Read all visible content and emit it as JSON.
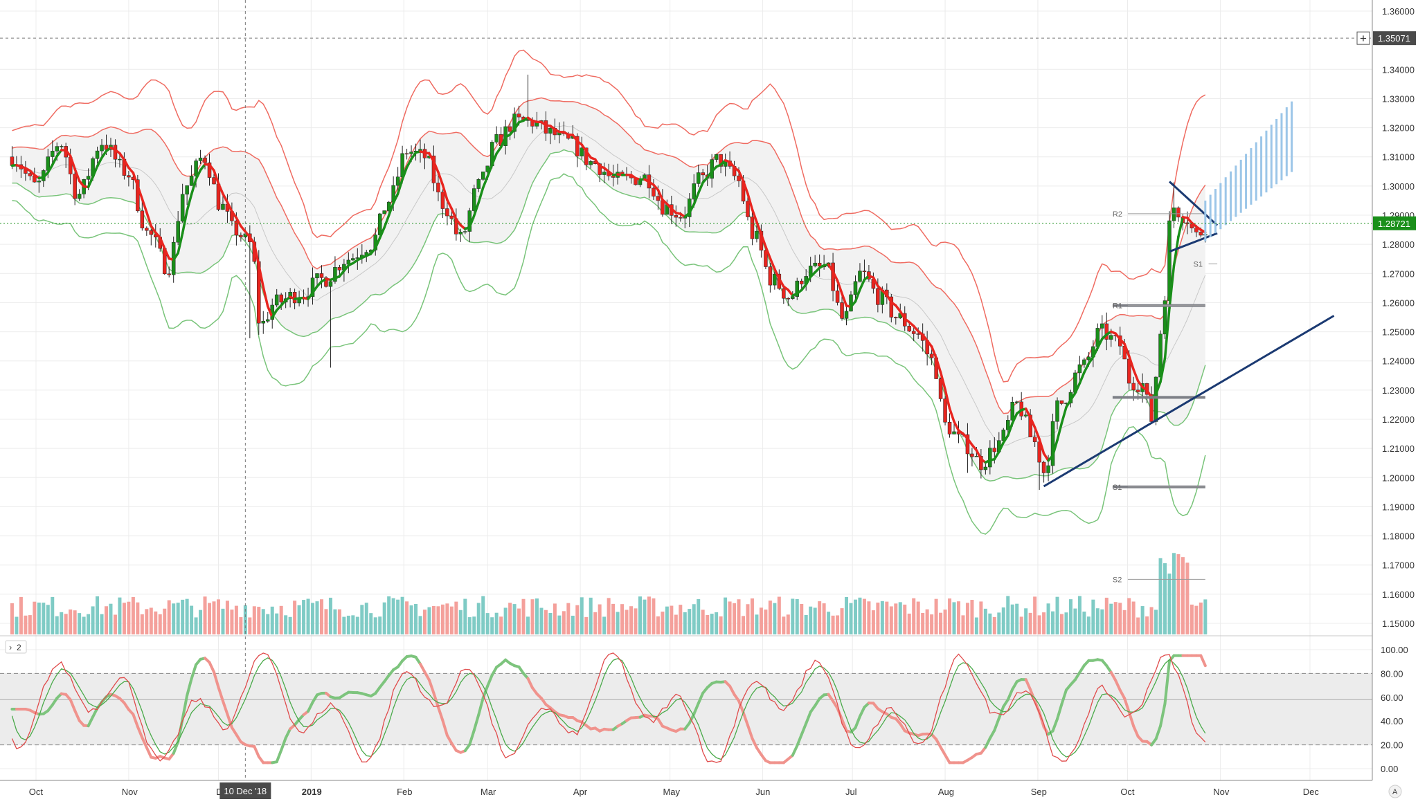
{
  "chart_data": [
    {
      "type": "candlestick",
      "symbol_pair_hint": "",
      "price_axis": {
        "min": 1.145,
        "max": 1.365,
        "ticks": [
          "1.36000",
          "1.34000",
          "1.33000",
          "1.32000",
          "1.31000",
          "1.30000",
          "1.29000",
          "1.28000",
          "1.27000",
          "1.26000",
          "1.25000",
          "1.24000",
          "1.23000",
          "1.22000",
          "1.21000",
          "1.20000",
          "1.19000",
          "1.18000",
          "1.17000",
          "1.16000",
          "1.15000"
        ],
        "tick_values": [
          1.36,
          1.34,
          1.33,
          1.32,
          1.31,
          1.3,
          1.29,
          1.28,
          1.27,
          1.26,
          1.25,
          1.24,
          1.23,
          1.22,
          1.21,
          1.2,
          1.19,
          1.18,
          1.17,
          1.16,
          1.15
        ],
        "crosshair_label": "1.35071",
        "crosshair_value": 1.35071,
        "last_price_label": "1.28721",
        "last_price_value": 1.28721
      },
      "time_axis": {
        "labels": [
          "Oct",
          "Nov",
          "D",
          "2019",
          "Feb",
          "Mar",
          "Apr",
          "May",
          "Jun",
          "Jul",
          "Aug",
          "Sep",
          "Oct",
          "Nov",
          "Dec"
        ],
        "label_days": [
          0,
          31,
          61,
          92,
          123,
          151,
          182,
          212,
          243,
          273,
          304,
          335,
          365,
          396,
          426
        ],
        "crosshair_label": "10 Dec '18",
        "crosshair_day": 70,
        "grid_days": [
          0,
          31,
          61,
          92,
          123,
          151,
          182,
          212,
          243,
          273,
          304,
          335,
          365,
          396,
          426
        ]
      },
      "key_prices": [
        {
          "name": "Sep low",
          "day": 336,
          "value": 1.1958
        },
        {
          "name": "Oct low",
          "day": 373,
          "value": 1.2195
        },
        {
          "name": "Oct high",
          "day": 380,
          "value": 1.3013
        },
        {
          "name": "Dec '18 low",
          "day": 72,
          "value": 1.2478
        },
        {
          "name": "Jan '19 low wick",
          "day": 98,
          "value": 1.2377
        },
        {
          "name": "Mar high",
          "day": 165,
          "value": 1.3382
        },
        {
          "name": "Aug low",
          "day": 311,
          "value": 1.2016
        }
      ],
      "pivots": [
        {
          "label": "R2",
          "value": 1.2905
        },
        {
          "label": "R1",
          "value": 1.259
        },
        {
          "label": "S1",
          "value": 1.1968
        },
        {
          "label": "S2",
          "value": 1.1651
        },
        {
          "label": "S1",
          "value": 1.2733
        }
      ],
      "pivot_levels": [
        {
          "value": 1.259,
          "from_day": 360,
          "to_day": 391
        },
        {
          "value": 1.2275,
          "from_day": 360,
          "to_day": 391
        },
        {
          "value": 1.1968,
          "from_day": 360,
          "to_day": 391
        }
      ],
      "trendlines": [
        {
          "from_day": 337,
          "from_value": 1.197,
          "to_day": 434,
          "to_value": 1.2555
        },
        {
          "from_day": 379,
          "from_value": 1.3015,
          "to_day": 395,
          "to_value": 1.2865
        },
        {
          "from_day": 379,
          "from_value": 1.2775,
          "to_day": 395,
          "to_value": 1.2838
        }
      ],
      "projection_bars": 18,
      "volume_panel": true,
      "colors": {
        "up": "#1a8f1a",
        "down": "#e8251f",
        "bb_outer": "#ef6b61",
        "bb_inner": "#79c47a",
        "bb_fill": "#f2f2f2",
        "vol_up": "#7fcbc5",
        "vol_down": "#f4a09b",
        "trendline": "#1b3a72",
        "pivot": "#7d7f86",
        "projection": "#9cc6e8",
        "last_price": "#1a8f1a"
      }
    },
    {
      "type": "line",
      "panel": "oscillator",
      "legend_label": "2",
      "y_axis": {
        "min": 0,
        "max": 100,
        "ticks": [
          "100.00",
          "80.00",
          "60.00",
          "40.00",
          "20.00",
          "0.00"
        ],
        "tick_values": [
          100,
          80,
          60,
          40,
          20,
          0
        ]
      },
      "band": [
        20,
        80
      ],
      "middle_line": 58,
      "colors": {
        "fast": "#e04b4b",
        "slow": "#4aaa4a",
        "thick_up": "#7dc47d",
        "thick_down": "#f0938d",
        "band": "#ececec"
      }
    }
  ]
}
